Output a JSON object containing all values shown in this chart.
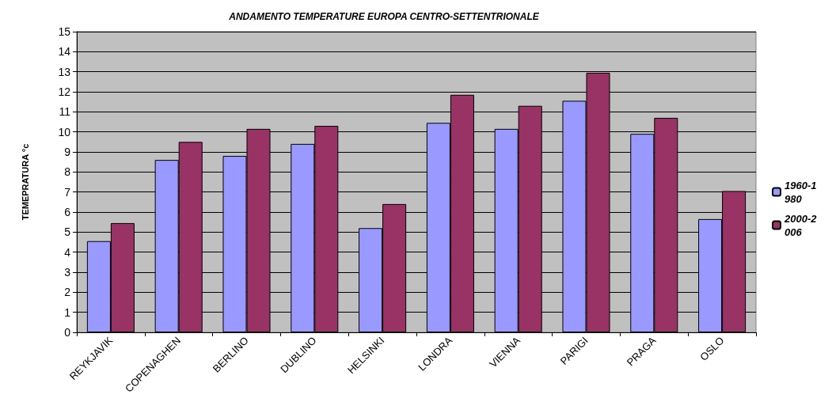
{
  "chart_data": {
    "type": "bar",
    "title": "ANDAMENTO TEMPERATURE EUROPA CENTRO-SETTENTRIONALE",
    "ylabel": "TEMEPRATURA °c",
    "categories": [
      "REYKJAVIK",
      "COPENAGHEN",
      "BERLINO",
      "DUBLINO",
      "HELSINKI",
      "LONDRA",
      "VIENNA",
      "PARIGI",
      "PRAGA",
      "OSLO"
    ],
    "series": [
      {
        "name": "1960-1980",
        "color": "#9999ff",
        "values": [
          4.55,
          8.6,
          8.8,
          9.4,
          5.2,
          10.45,
          10.15,
          11.55,
          9.9,
          5.65
        ]
      },
      {
        "name": "2000-2006",
        "color": "#993366",
        "values": [
          5.45,
          9.5,
          10.15,
          10.3,
          6.4,
          11.85,
          11.3,
          12.95,
          10.7,
          7.05
        ]
      }
    ],
    "ylim": [
      0,
      15
    ],
    "yticks": [
      0,
      1,
      2,
      3,
      4,
      5,
      6,
      7,
      8,
      9,
      10,
      11,
      12,
      13,
      14,
      15
    ],
    "grid": "y",
    "legend": "right"
  }
}
